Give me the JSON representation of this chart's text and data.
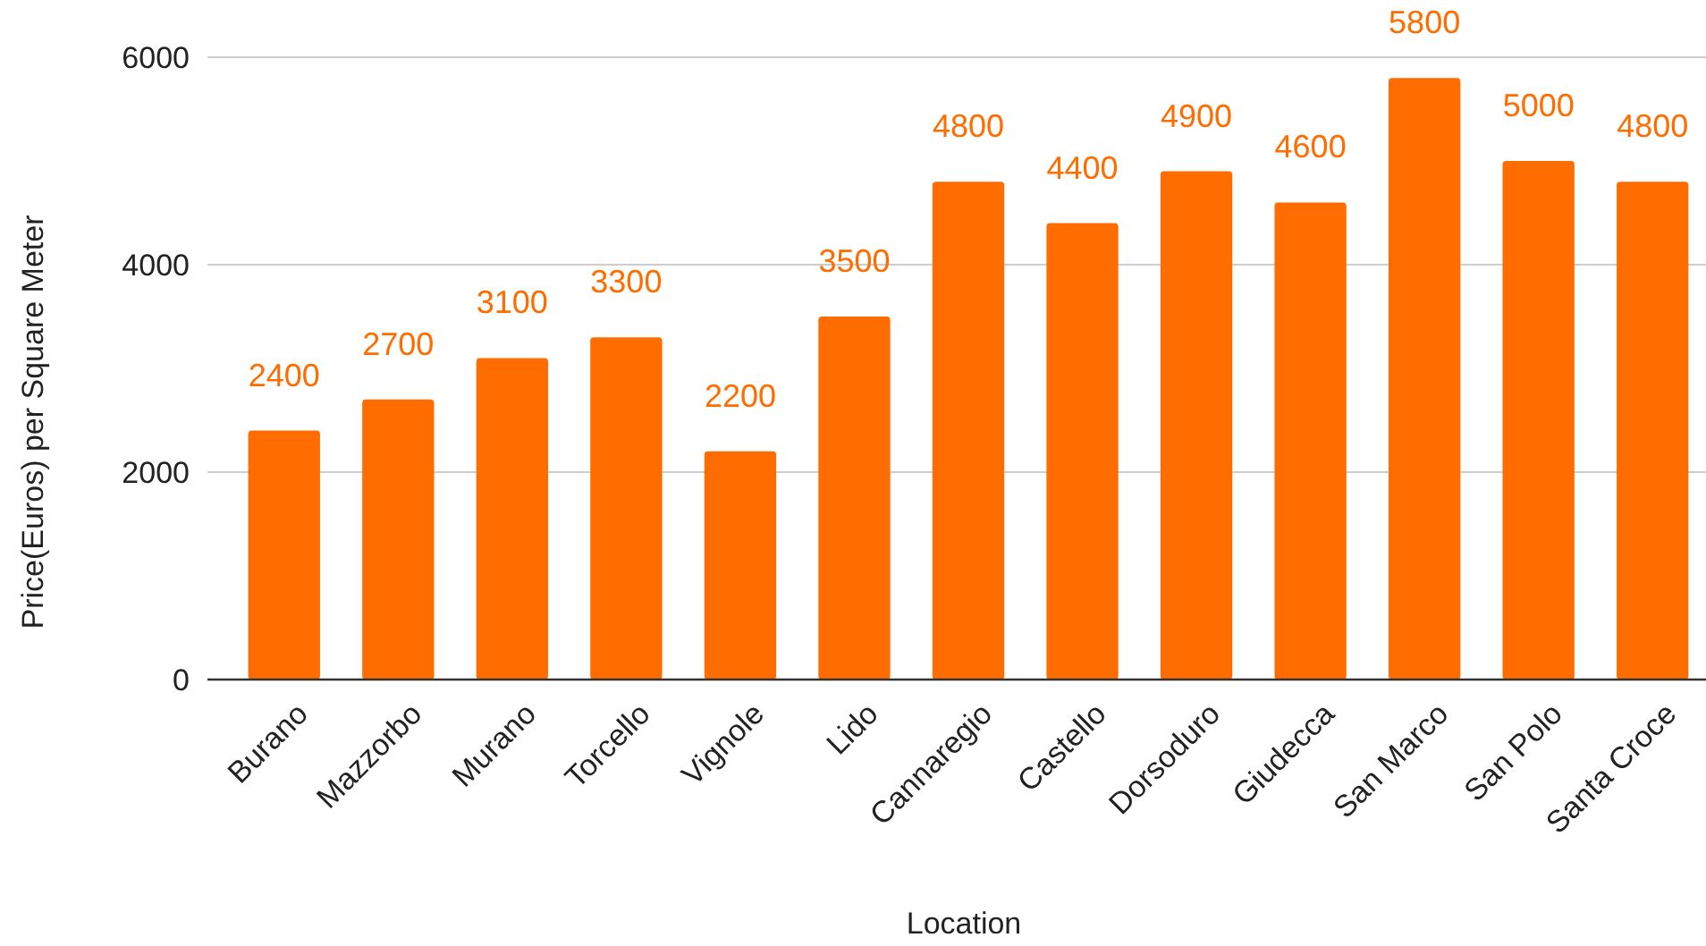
{
  "chart_data": {
    "type": "bar",
    "xlabel": "Location",
    "ylabel": "Price(Euros) per Square Meter",
    "categories": [
      "Burano",
      "Mazzorbo",
      "Murano",
      "Torcello",
      "Vignole",
      "Lido",
      "Cannaregio",
      "Castello",
      "Dorsoduro",
      "Giudecca",
      "San Marco",
      "San Polo",
      "Santa Croce"
    ],
    "values": [
      2400,
      2700,
      3100,
      3300,
      2200,
      3500,
      4800,
      4400,
      4900,
      4600,
      5800,
      5000,
      4800
    ],
    "color": "#ff6d00",
    "ylim": [
      0,
      6000
    ],
    "yticks": [
      0,
      2000,
      4000,
      6000
    ],
    "grid": "y",
    "data_labels": true
  }
}
